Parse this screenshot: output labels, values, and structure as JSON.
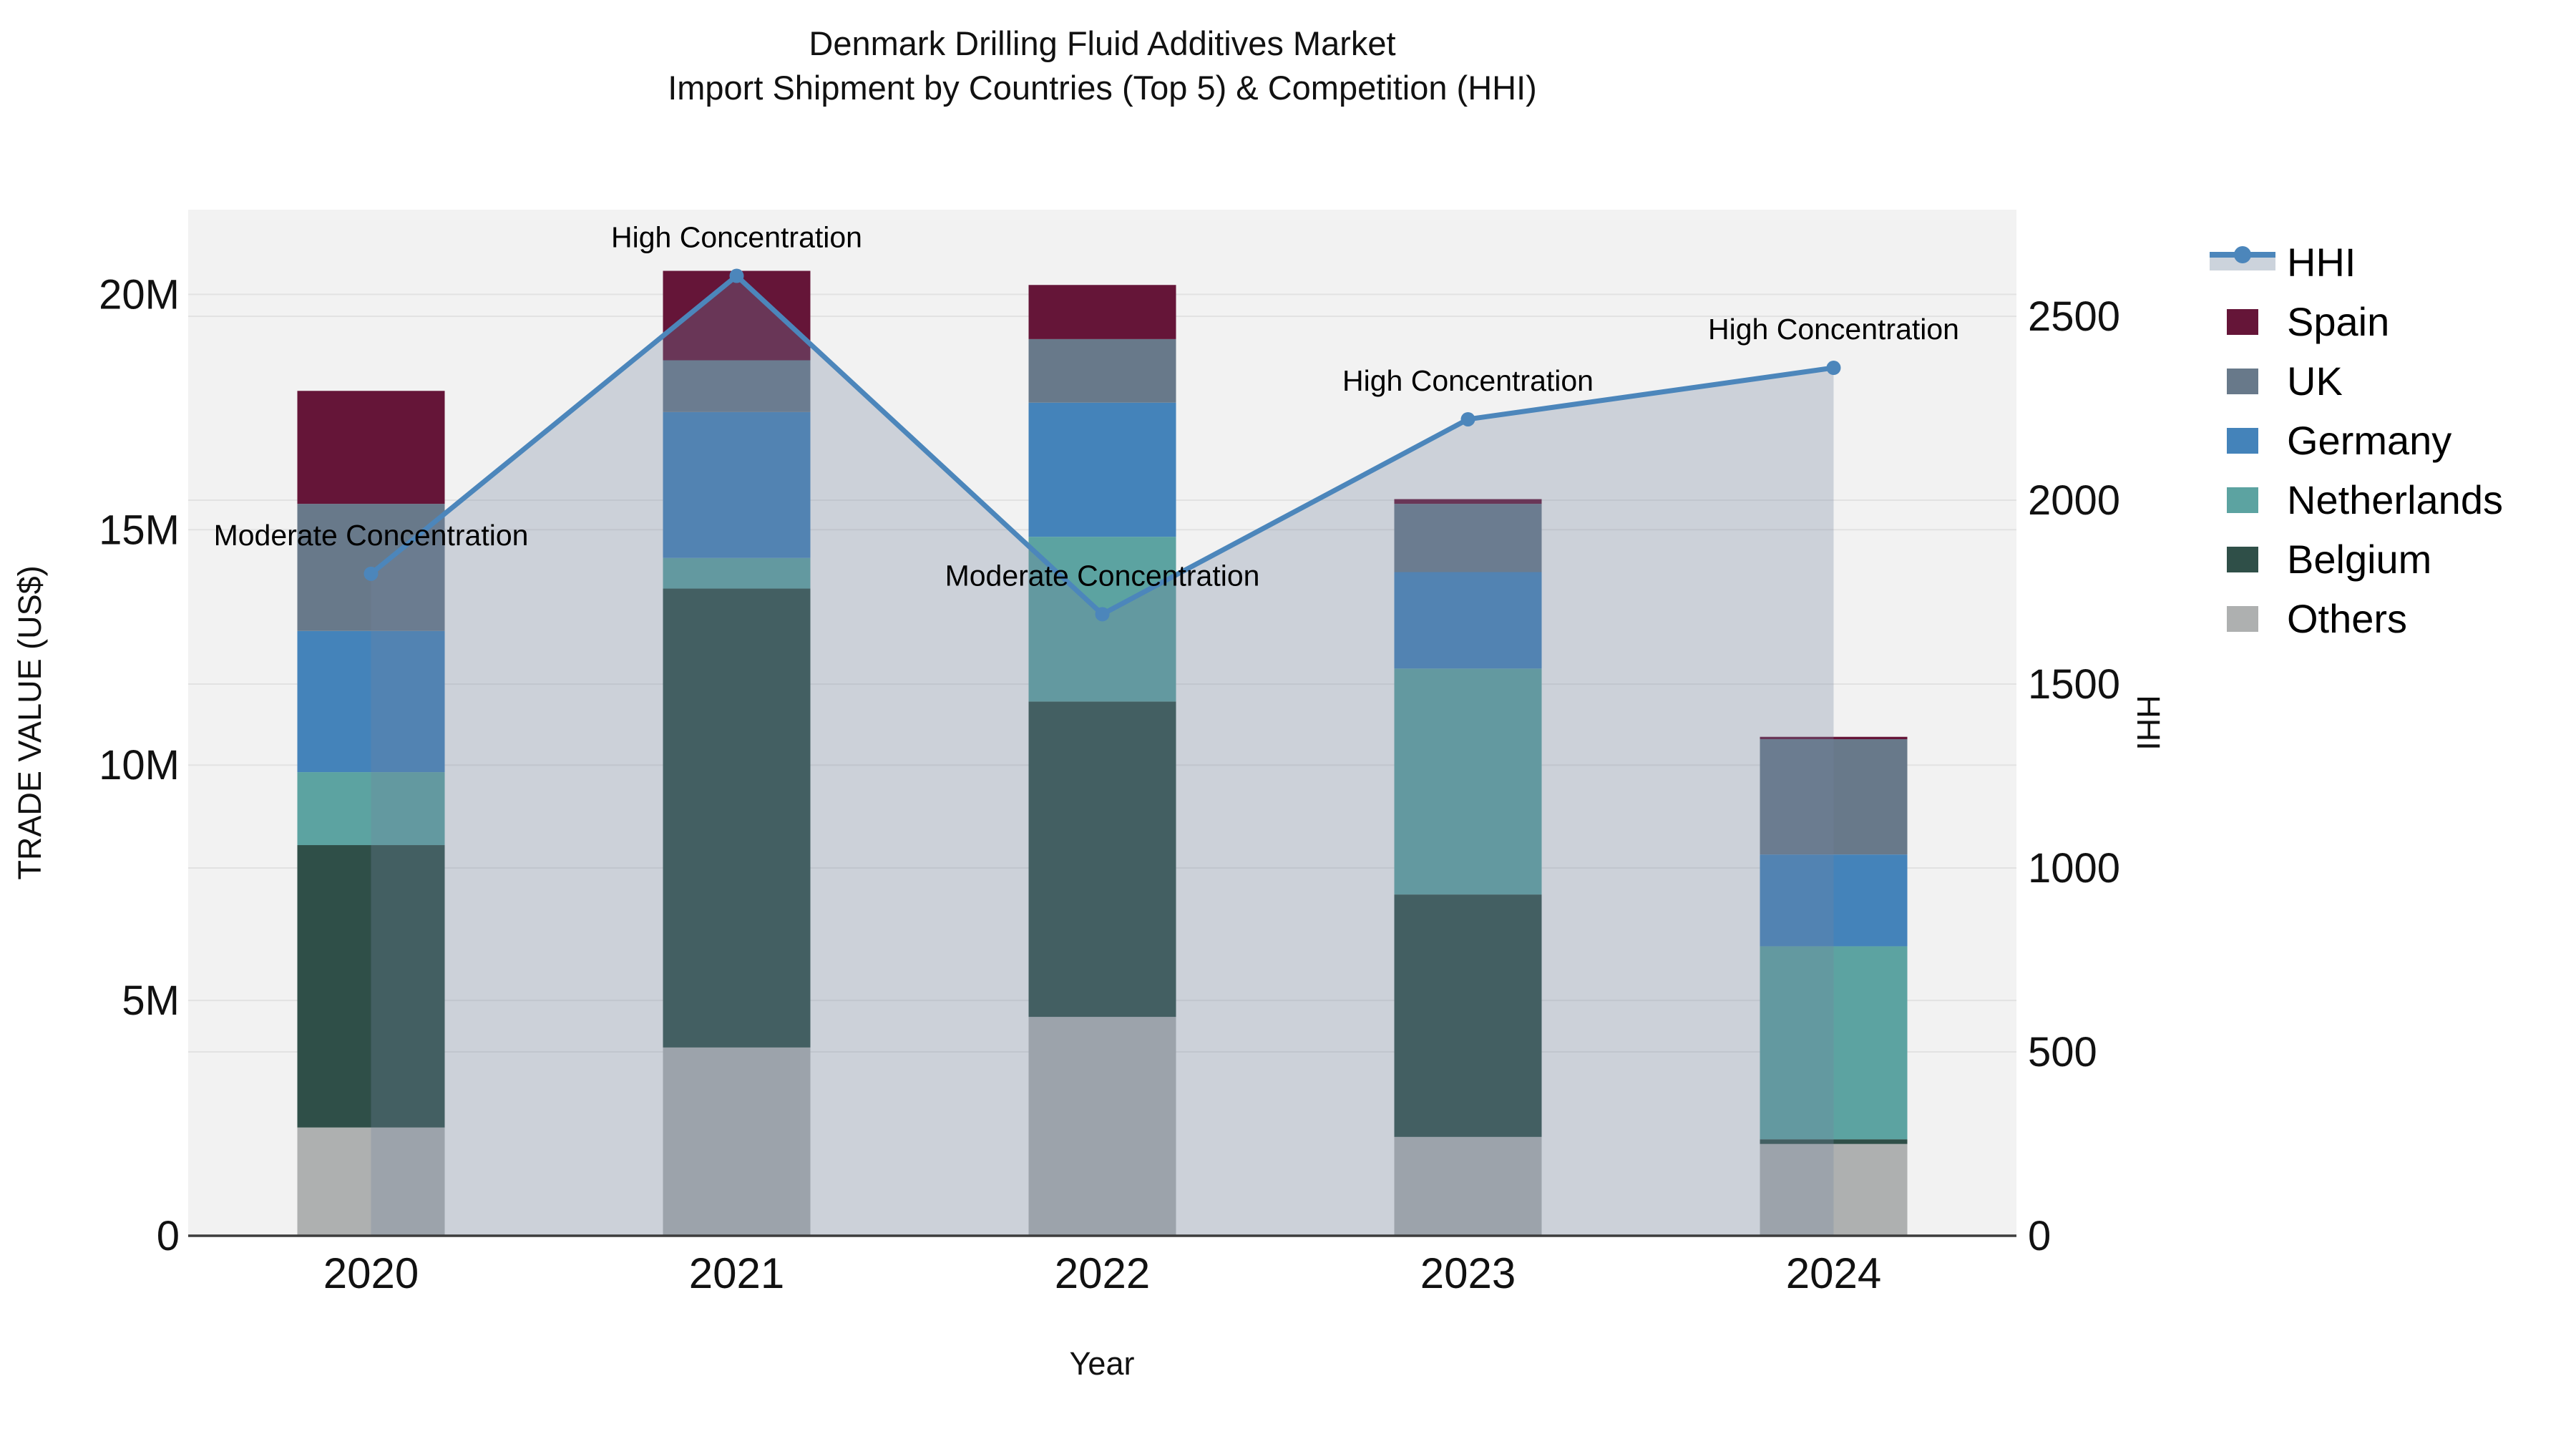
{
  "title": {
    "line1": "Denmark Drilling Fluid Additives Market",
    "line2": "Import Shipment by Countries (Top 5) & Competition (HHI)"
  },
  "axes": {
    "x_label": "Year",
    "y_left_label": "TRADE VALUE (US$)",
    "y_right_label": "HHI",
    "y_left_max": 21.8,
    "y_right_max": 2790,
    "y_left_ticks": [
      {
        "value": 0,
        "label": "0"
      },
      {
        "value": 5,
        "label": "5M"
      },
      {
        "value": 10,
        "label": "10M"
      },
      {
        "value": 15,
        "label": "15M"
      },
      {
        "value": 20,
        "label": "20M"
      }
    ],
    "y_right_ticks": [
      {
        "value": 0,
        "label": "0"
      },
      {
        "value": 500,
        "label": "500"
      },
      {
        "value": 1000,
        "label": "1000"
      },
      {
        "value": 1500,
        "label": "1500"
      },
      {
        "value": 2000,
        "label": "2000"
      },
      {
        "value": 2500,
        "label": "2500"
      }
    ],
    "grid_color": "#e2e2e2",
    "spine_color": "#3d3d3d",
    "plot_bg": "#f2f2f2"
  },
  "chart_data": {
    "type": "combo: stacked-bar (left axis, trade value in millions US$) + line with area fill (right axis, HHI)",
    "categories": [
      "2020",
      "2021",
      "2022",
      "2023",
      "2024"
    ],
    "bar_unit": "million US$",
    "bar_series": [
      {
        "name": "Others",
        "color": "#aeb0b0",
        "values": [
          2.3,
          4.0,
          4.65,
          2.1,
          1.95
        ]
      },
      {
        "name": "Belgium",
        "color": "#2f4f48",
        "values": [
          6.0,
          9.75,
          6.7,
          5.15,
          0.1
        ]
      },
      {
        "name": "Netherlands",
        "color": "#5ca3a1",
        "values": [
          1.55,
          0.65,
          3.5,
          4.8,
          4.1
        ]
      },
      {
        "name": "Germany",
        "color": "#4483ba",
        "values": [
          3.0,
          3.1,
          2.85,
          2.05,
          1.95
        ]
      },
      {
        "name": "UK",
        "color": "#68798a",
        "values": [
          2.7,
          1.1,
          1.35,
          1.45,
          2.45
        ]
      },
      {
        "name": "Spain",
        "color": "#651538",
        "values": [
          2.4,
          1.9,
          1.15,
          0.1,
          0.05
        ]
      }
    ],
    "bar_totals": [
      17.95,
      20.5,
      20.2,
      15.65,
      10.6
    ],
    "line_series": {
      "name": "HHI",
      "values": [
        1800,
        2610,
        1690,
        2220,
        2360
      ],
      "color": "#4c86bb",
      "area_fill": "rgba(116,132,160,0.30)"
    },
    "annotations": [
      {
        "category": "2020",
        "text": "Moderate Concentration"
      },
      {
        "category": "2021",
        "text": "High Concentration"
      },
      {
        "category": "2022",
        "text": "Moderate Concentration"
      },
      {
        "category": "2023",
        "text": "High Concentration"
      },
      {
        "category": "2024",
        "text": "High Concentration"
      }
    ]
  },
  "legend": {
    "items": [
      {
        "label": "HHI",
        "type": "line",
        "color": "#4c86bb",
        "band_color": "#ccd3dc"
      },
      {
        "label": "Spain",
        "type": "patch",
        "color": "#651538"
      },
      {
        "label": "UK",
        "type": "patch",
        "color": "#68798a"
      },
      {
        "label": "Germany",
        "type": "patch",
        "color": "#4483ba"
      },
      {
        "label": "Netherlands",
        "type": "patch",
        "color": "#5ca3a1"
      },
      {
        "label": "Belgium",
        "type": "patch",
        "color": "#2f4f48"
      },
      {
        "label": "Others",
        "type": "patch",
        "color": "#aeb0b0"
      }
    ]
  }
}
